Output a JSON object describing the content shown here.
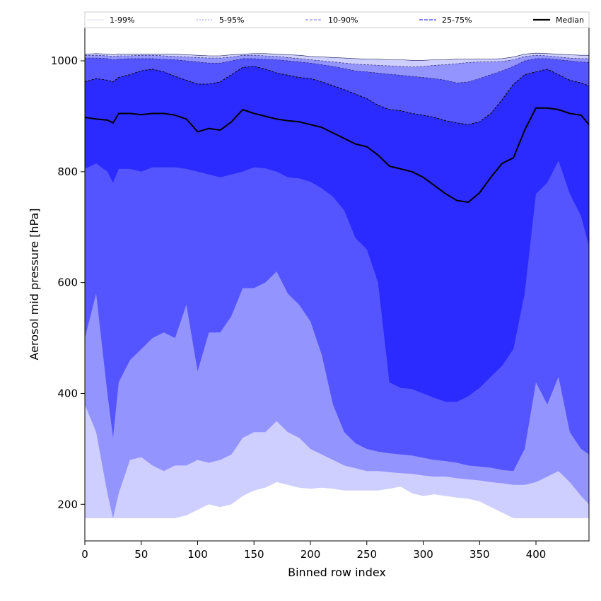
{
  "chart_data": {
    "type": "area",
    "title": "",
    "xlabel": "Binned row index",
    "ylabel": "Aerosol mid pressure [hPa]",
    "xlim": [
      0,
      447
    ],
    "ylim": [
      134,
      1060
    ],
    "x_ticks": [
      0,
      50,
      100,
      150,
      200,
      250,
      300,
      350,
      400
    ],
    "x_tick_labels": [
      "0",
      "50",
      "100",
      "150",
      "200",
      "250",
      "300",
      "350",
      "400"
    ],
    "y_ticks": [
      200,
      400,
      600,
      800,
      1000
    ],
    "y_tick_labels": [
      "200",
      "400",
      "600",
      "800",
      "1000"
    ],
    "legend": {
      "placement": "top, full width",
      "entries": [
        {
          "label": "1-99%",
          "style": "solid thin",
          "color": "#e6e6f5"
        },
        {
          "label": "5-95%",
          "style": "dotted thin",
          "color": "#8c8cff"
        },
        {
          "label": "10-90%",
          "style": "dashed",
          "color": "#8c8cff"
        },
        {
          "label": "25-75%",
          "style": "dashed",
          "color": "#5a5aff"
        },
        {
          "label": "Median",
          "style": "solid thick",
          "color": "#000000"
        }
      ]
    },
    "colors": {
      "band_1_99": "#cfcfff",
      "band_5_95": "#9494ff",
      "band_10_90": "#5555ff",
      "band_25_75": "#2b2bff",
      "median": "#000000"
    },
    "x": [
      0,
      10,
      20,
      25,
      30,
      40,
      50,
      60,
      70,
      80,
      90,
      100,
      110,
      120,
      130,
      140,
      150,
      160,
      170,
      180,
      190,
      200,
      210,
      220,
      230,
      240,
      250,
      260,
      270,
      280,
      290,
      300,
      310,
      320,
      330,
      340,
      350,
      360,
      370,
      380,
      390,
      400,
      410,
      420,
      430,
      440,
      447
    ],
    "series": [
      {
        "name": "1-99%",
        "lower": [
          175,
          175,
          175,
          175,
          175,
          175,
          175,
          175,
          175,
          175,
          180,
          190,
          200,
          195,
          200,
          215,
          225,
          230,
          240,
          235,
          230,
          228,
          230,
          228,
          225,
          225,
          225,
          225,
          228,
          232,
          220,
          215,
          218,
          215,
          212,
          210,
          205,
          195,
          185,
          175,
          175,
          175,
          175,
          175,
          175,
          175,
          175
        ],
        "upper": [
          1012,
          1013,
          1012,
          1011,
          1012,
          1012,
          1012,
          1012,
          1012,
          1012,
          1011,
          1010,
          1009,
          1009,
          1011,
          1012,
          1013,
          1013,
          1012,
          1011,
          1010,
          1008,
          1007,
          1006,
          1005,
          1004,
          1003,
          1003,
          1002,
          1002,
          1001,
          1001,
          1002,
          1002,
          1003,
          1003,
          1003,
          1003,
          1004,
          1007,
          1012,
          1014,
          1013,
          1012,
          1011,
          1010,
          1010
        ]
      },
      {
        "name": "5-95%",
        "lower": [
          380,
          330,
          220,
          175,
          220,
          280,
          285,
          270,
          260,
          270,
          270,
          280,
          275,
          280,
          290,
          320,
          330,
          330,
          350,
          330,
          320,
          300,
          290,
          280,
          270,
          265,
          260,
          260,
          258,
          256,
          255,
          252,
          250,
          250,
          247,
          245,
          243,
          240,
          238,
          235,
          235,
          240,
          250,
          260,
          240,
          215,
          200
        ],
        "upper": [
          1010,
          1010,
          1009,
          1008,
          1009,
          1009,
          1010,
          1010,
          1009,
          1008,
          1007,
          1006,
          1005,
          1005,
          1007,
          1010,
          1010,
          1009,
          1008,
          1006,
          1004,
          1002,
          1000,
          998,
          996,
          994,
          993,
          992,
          991,
          990,
          989,
          990,
          992,
          993,
          995,
          997,
          998,
          998,
          999,
          1002,
          1008,
          1010,
          1009,
          1007,
          1005,
          1004,
          1004
        ]
      },
      {
        "name": "10-90%",
        "lower": [
          500,
          580,
          400,
          320,
          420,
          460,
          480,
          500,
          510,
          500,
          560,
          440,
          510,
          510,
          540,
          590,
          590,
          600,
          620,
          580,
          560,
          530,
          470,
          380,
          330,
          310,
          300,
          295,
          292,
          290,
          288,
          284,
          280,
          278,
          275,
          270,
          268,
          266,
          262,
          260,
          300,
          420,
          380,
          430,
          330,
          300,
          290
        ],
        "upper": [
          1005,
          1005,
          1004,
          1002,
          1003,
          1004,
          1004,
          1004,
          1003,
          1002,
          1000,
          998,
          996,
          996,
          1000,
          1004,
          1004,
          1003,
          1002,
          1000,
          998,
          996,
          993,
          990,
          986,
          982,
          980,
          978,
          976,
          974,
          972,
          970,
          968,
          965,
          960,
          962,
          968,
          975,
          982,
          990,
          1000,
          1004,
          1004,
          1002,
          1000,
          998,
          997
        ]
      },
      {
        "name": "25-75%",
        "lower": [
          805,
          815,
          800,
          780,
          805,
          805,
          800,
          808,
          808,
          808,
          805,
          800,
          795,
          790,
          795,
          800,
          808,
          806,
          800,
          790,
          788,
          782,
          770,
          755,
          730,
          680,
          660,
          600,
          420,
          410,
          408,
          400,
          392,
          385,
          385,
          395,
          410,
          430,
          450,
          480,
          580,
          760,
          780,
          820,
          760,
          720,
          665
        ],
        "upper": [
          962,
          968,
          965,
          962,
          970,
          975,
          982,
          985,
          980,
          972,
          965,
          958,
          958,
          962,
          975,
          988,
          990,
          985,
          978,
          974,
          970,
          968,
          962,
          955,
          948,
          940,
          932,
          920,
          912,
          910,
          905,
          902,
          898,
          892,
          888,
          885,
          890,
          905,
          930,
          958,
          975,
          980,
          985,
          975,
          965,
          960,
          955
        ]
      },
      {
        "name": "Median",
        "values": [
          898,
          895,
          893,
          888,
          905,
          905,
          903,
          905,
          905,
          902,
          895,
          872,
          878,
          875,
          890,
          912,
          905,
          900,
          895,
          892,
          890,
          885,
          880,
          870,
          860,
          850,
          845,
          830,
          810,
          805,
          800,
          790,
          775,
          760,
          748,
          745,
          762,
          790,
          815,
          825,
          875,
          915,
          915,
          912,
          905,
          902,
          885
        ]
      }
    ]
  }
}
